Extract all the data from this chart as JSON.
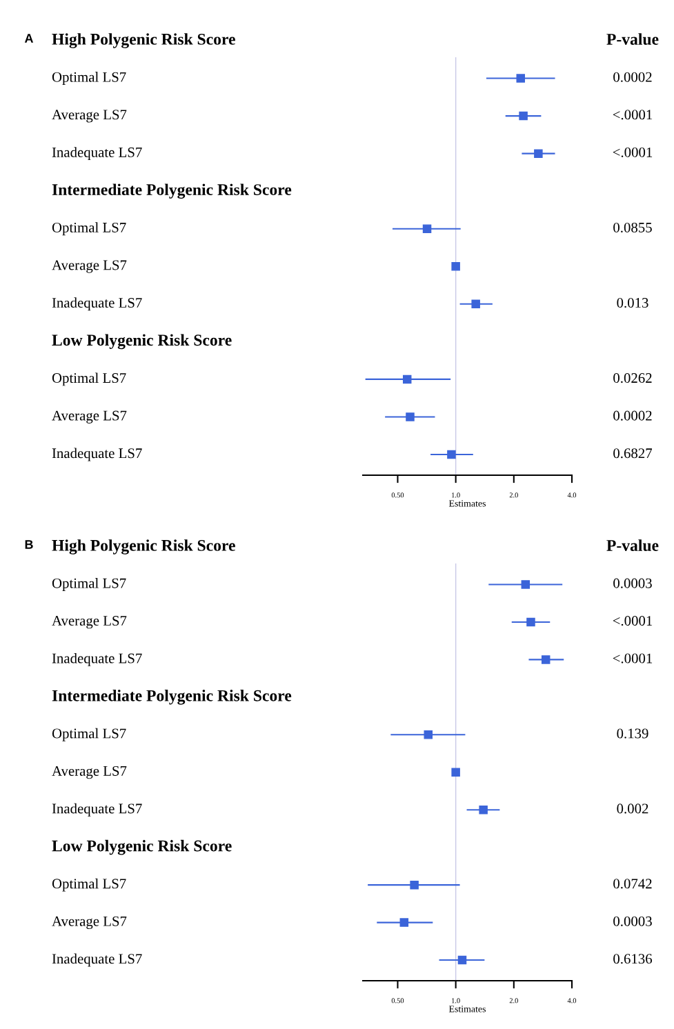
{
  "chart_data": [
    {
      "type": "scatter",
      "orientation": "horizontal",
      "title": "A",
      "xlabel": "Estimates",
      "log": "x",
      "marker": "square",
      "grid": false,
      "legend": false,
      "categories": [
        "High Polygenic Risk Score",
        "Optimal LS7",
        "Average LS7",
        "Inadequate LS7",
        "Intermediate Polygenic Risk Score",
        "Optimal LS7",
        "Average LS7",
        "Inadequate LS7",
        "Low Polygenic Risk Score",
        "Optimal LS7",
        "Average LS7",
        "Inadequate LS7"
      ],
      "y2_categories": [
        "P-value",
        "0.0002",
        "<.0001",
        "<.0001",
        null,
        "0.0855",
        null,
        "0.013",
        null,
        "0.0262",
        "0.0002",
        "0.6827"
      ],
      "series": [
        {
          "color": "#3b64d9",
          "values": [
            null,
            2.17,
            2.24,
            2.68,
            null,
            0.71,
            1.0,
            1.27,
            null,
            0.56,
            0.58,
            0.95
          ],
          "errors": [
            null,
            [
              1.44,
              3.27
            ],
            [
              1.81,
              2.77
            ],
            [
              2.2,
              3.27
            ],
            null,
            [
              0.47,
              1.06
            ],
            null,
            [
              1.05,
              1.55
            ],
            null,
            [
              0.34,
              0.94
            ],
            [
              0.43,
              0.78
            ],
            [
              0.74,
              1.23
            ]
          ]
        }
      ],
      "xlim": [
        0.33,
        4.0
      ],
      "xticks": [
        {
          "value": 0.5,
          "label": "0.50"
        },
        {
          "value": 1.0,
          "label": "1.0"
        },
        {
          "value": 2.0,
          "label": "2.0"
        },
        {
          "value": 4.0,
          "label": "4.0"
        }
      ],
      "ref_lines": [
        {
          "axis": "x",
          "value": 1.0,
          "color": "#c8c8e6"
        }
      ]
    },
    {
      "type": "scatter",
      "orientation": "horizontal",
      "title": "B",
      "xlabel": "Estimates",
      "log": "x",
      "marker": "square",
      "grid": false,
      "legend": false,
      "categories": [
        "High Polygenic Risk Score",
        "Optimal LS7",
        "Average LS7",
        "Inadequate LS7",
        "Intermediate Polygenic Risk Score",
        "Optimal LS7",
        "Average LS7",
        "Inadequate LS7",
        "Low Polygenic Risk Score",
        "Optimal LS7",
        "Average LS7",
        "Inadequate LS7"
      ],
      "y2_categories": [
        "P-value",
        "0.0003",
        "<.0001",
        "<.0001",
        null,
        "0.139",
        null,
        "0.002",
        null,
        "0.0742",
        "0.0003",
        "0.6136"
      ],
      "series": [
        {
          "color": "#3b64d9",
          "values": [
            null,
            2.3,
            2.45,
            2.93,
            null,
            0.72,
            1.0,
            1.39,
            null,
            0.61,
            0.54,
            1.08
          ],
          "errors": [
            null,
            [
              1.48,
              3.57
            ],
            [
              1.95,
              3.08
            ],
            [
              2.39,
              3.63
            ],
            null,
            [
              0.46,
              1.12
            ],
            null,
            [
              1.14,
              1.69
            ],
            null,
            [
              0.35,
              1.05
            ],
            [
              0.39,
              0.76
            ],
            [
              0.82,
              1.41
            ]
          ]
        }
      ],
      "xlim": [
        0.33,
        4.0
      ],
      "xticks": [
        {
          "value": 0.5,
          "label": "0.50"
        },
        {
          "value": 1.0,
          "label": "1.0"
        },
        {
          "value": 2.0,
          "label": "2.0"
        },
        {
          "value": 4.0,
          "label": "4.0"
        }
      ],
      "ref_lines": [
        {
          "axis": "x",
          "value": 1.0,
          "color": "#c8c8e6"
        }
      ]
    }
  ]
}
